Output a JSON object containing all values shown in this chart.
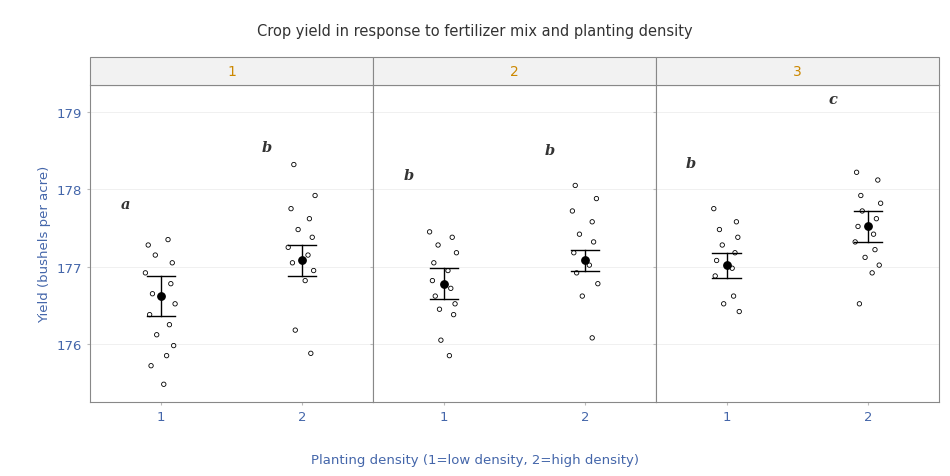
{
  "title": "Crop yield in response to fertilizer mix and planting density",
  "xlabel": "Planting density (1=low density, 2=high density)",
  "ylabel": "Yield (bushels per acre)",
  "facet_labels": [
    "1",
    "2",
    "3"
  ],
  "ylim": [
    175.25,
    179.35
  ],
  "yticks": [
    176,
    177,
    178,
    179
  ],
  "title_color": "#333333",
  "axis_label_color": "#4466aa",
  "tick_label_color": "#4466aa",
  "facet_label_color": "#cc8800",
  "letter_labels": {
    "f1_d1": "a",
    "f1_d2": "b",
    "f2_d1": "b",
    "f2_d2": "b",
    "f3_d1": "b",
    "f3_d2": "c"
  },
  "letter_y": {
    "f1_d1": 177.72,
    "f1_d2": 178.45,
    "f2_d1": 178.1,
    "f2_d2": 178.42,
    "f3_d1": 178.25,
    "f3_d2": 179.08
  },
  "means": {
    "f1_d1": 176.62,
    "f1_d2": 177.08,
    "f2_d1": 176.78,
    "f2_d2": 177.08,
    "f3_d1": 177.02,
    "f3_d2": 177.52
  },
  "ci_upper": {
    "f1_d1": 176.88,
    "f1_d2": 177.28,
    "f2_d1": 176.98,
    "f2_d2": 177.22,
    "f3_d1": 177.18,
    "f3_d2": 177.72
  },
  "ci_lower": {
    "f1_d1": 176.36,
    "f1_d2": 176.88,
    "f2_d1": 176.58,
    "f2_d2": 176.94,
    "f3_d1": 176.86,
    "f3_d2": 177.32
  },
  "raw_data": {
    "f1_d1": [
      177.28,
      177.35,
      177.15,
      177.05,
      176.92,
      176.78,
      176.65,
      176.52,
      176.38,
      176.25,
      176.12,
      175.98,
      175.85,
      175.72,
      175.48
    ],
    "f1_d2": [
      178.32,
      177.92,
      177.75,
      177.62,
      177.48,
      177.38,
      177.25,
      177.15,
      177.05,
      176.95,
      176.82,
      176.18,
      175.88
    ],
    "f2_d1": [
      177.45,
      177.38,
      177.28,
      177.18,
      177.05,
      176.95,
      176.82,
      176.72,
      176.62,
      176.52,
      176.45,
      176.38,
      176.05,
      175.85
    ],
    "f2_d2": [
      178.05,
      177.88,
      177.72,
      177.58,
      177.42,
      177.32,
      177.18,
      177.02,
      176.92,
      176.78,
      176.62,
      176.08
    ],
    "f3_d1": [
      177.75,
      177.58,
      177.48,
      177.38,
      177.28,
      177.18,
      177.08,
      176.98,
      176.88,
      176.62,
      176.52,
      176.42
    ],
    "f3_d2": [
      178.22,
      178.12,
      177.92,
      177.82,
      177.72,
      177.62,
      177.52,
      177.42,
      177.32,
      177.22,
      177.12,
      177.02,
      176.92,
      176.52
    ]
  },
  "jitter": {
    "f1_d1": [
      -0.09,
      0.05,
      -0.04,
      0.08,
      -0.11,
      0.07,
      -0.06,
      0.1,
      -0.08,
      0.06,
      -0.03,
      0.09,
      0.04,
      -0.07,
      0.02
    ],
    "f1_d2": [
      -0.06,
      0.09,
      -0.08,
      0.05,
      -0.03,
      0.07,
      -0.1,
      0.04,
      -0.07,
      0.08,
      0.02,
      -0.05,
      0.06
    ],
    "f2_d1": [
      -0.1,
      0.06,
      -0.04,
      0.09,
      -0.07,
      0.03,
      -0.08,
      0.05,
      -0.06,
      0.08,
      -0.03,
      0.07,
      -0.02,
      0.04
    ],
    "f2_d2": [
      -0.07,
      0.08,
      -0.09,
      0.05,
      -0.04,
      0.06,
      -0.08,
      0.03,
      -0.06,
      0.09,
      -0.02,
      0.05
    ],
    "f3_d1": [
      -0.09,
      0.07,
      -0.05,
      0.08,
      -0.03,
      0.06,
      -0.07,
      0.04,
      -0.08,
      0.05,
      -0.02,
      0.09
    ],
    "f3_d2": [
      -0.08,
      0.07,
      -0.05,
      0.09,
      -0.04,
      0.06,
      -0.07,
      0.04,
      -0.09,
      0.05,
      -0.02,
      0.08,
      0.03,
      -0.06
    ]
  },
  "background_color": "#ffffff",
  "strip_bg": "#f2f2f2",
  "strip_border": "#888888"
}
